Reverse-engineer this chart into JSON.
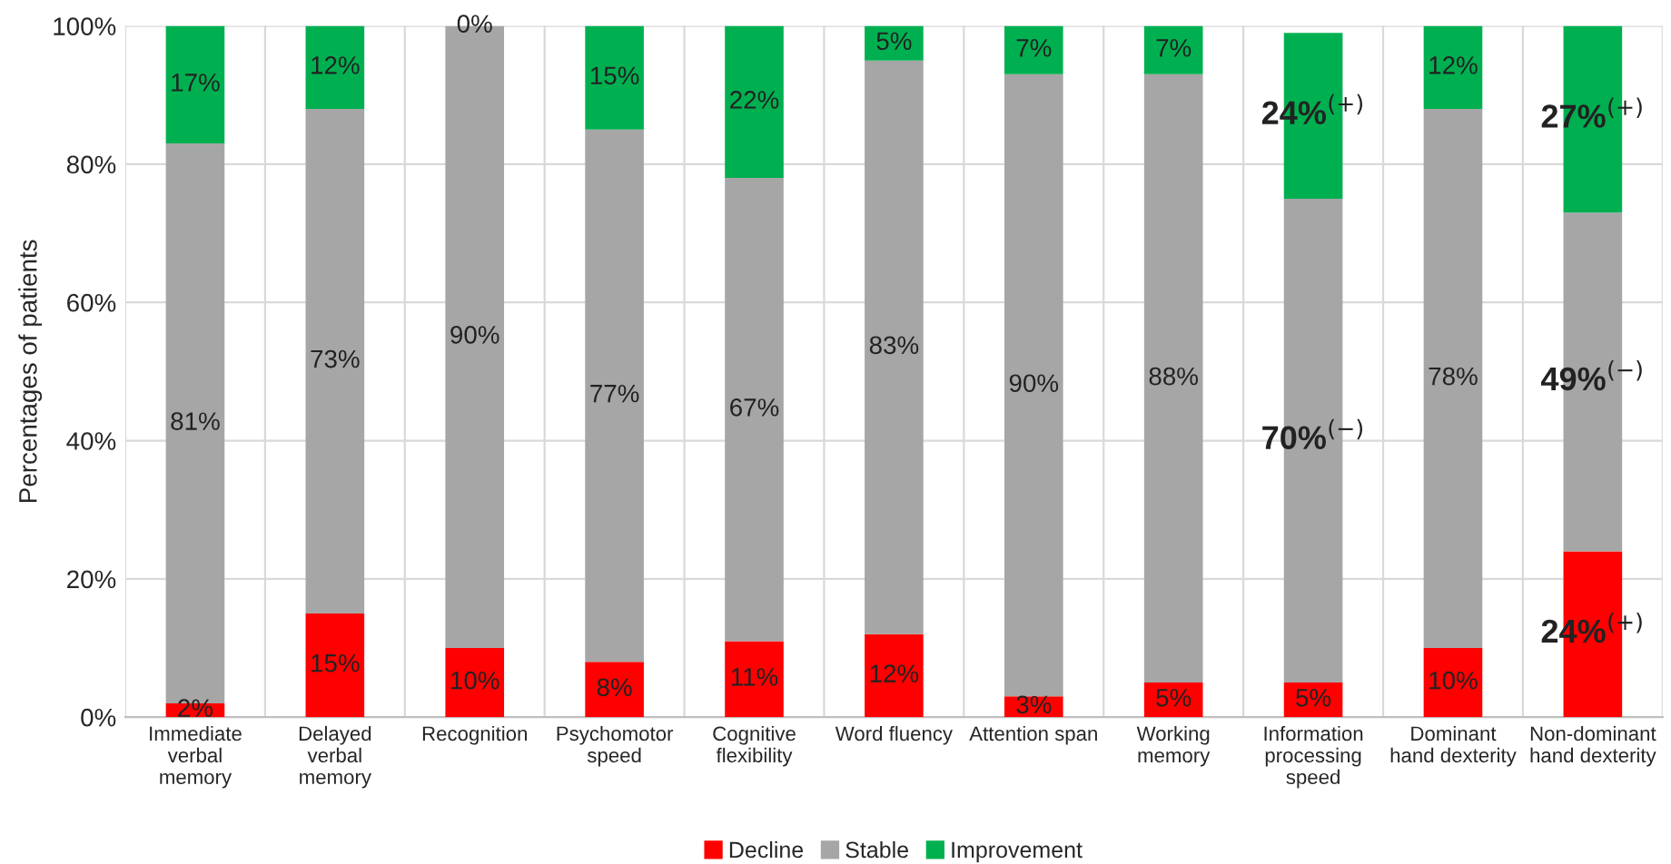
{
  "chart_data": {
    "type": "bar",
    "stacked": true,
    "ylabel": "Percentages of patients",
    "categories": [
      "Immediate\nverbal\nmemory",
      "Delayed\nverbal\nmemory",
      "Recognition",
      "Psychomotor\nspeed",
      "Cognitive\nflexibility",
      "Word fluency",
      "Attention span",
      "Working\nmemory",
      "Information\nprocessing\nspeed",
      "Dominant\nhand dexterity",
      "Non-dominant\nhand dexterity"
    ],
    "series": [
      {
        "name": "Decline",
        "color": "#ff0000",
        "values": [
          2,
          15,
          10,
          8,
          11,
          12,
          3,
          5,
          5,
          10,
          24
        ],
        "value_labels": [
          "2%",
          "15%",
          "10%",
          "8%",
          "11%",
          "12%",
          "3%",
          "5%",
          "5%",
          "10%",
          "24%$^{(+)}$"
        ]
      },
      {
        "name": "Stable",
        "color": "#a6a6a6",
        "values": [
          81,
          73,
          90,
          77,
          67,
          83,
          90,
          88,
          70,
          78,
          49
        ],
        "value_labels": [
          "81%",
          "73%",
          "90%",
          "77%",
          "67%",
          "83%",
          "90%",
          "88%",
          "70%$^{(−)}$",
          "78%",
          "49%$^{(−)}$"
        ]
      },
      {
        "name": "Improvement",
        "color": "#00b050",
        "values": [
          17,
          12,
          0,
          15,
          22,
          5,
          7,
          7,
          24,
          12,
          27
        ],
        "value_labels": [
          "17%",
          "12%",
          "0%",
          "15%",
          "22%",
          "5%",
          "7%",
          "7%",
          "24%$^{(+)}$",
          "12%",
          "27%$^{(+)}$"
        ]
      }
    ],
    "ylim": [
      0,
      100
    ],
    "yticks": [
      {
        "value": 0,
        "label": "0%"
      },
      {
        "value": 20,
        "label": "20%"
      },
      {
        "value": 40,
        "label": "40%"
      },
      {
        "value": 60,
        "label": "60%"
      },
      {
        "value": 80,
        "label": "80%"
      },
      {
        "value": 100,
        "label": "100%"
      }
    ],
    "grid": true,
    "legend": "bottom"
  }
}
